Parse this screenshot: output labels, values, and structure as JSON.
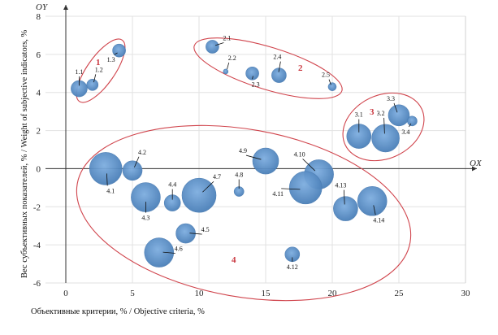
{
  "chart_data": {
    "type": "bubble",
    "xlabel": "Объективные критерии, % /  Objective criteria, %",
    "ylabel": "Вес субъективных показателей, % / Weight of subjective indicators, %",
    "x_axis_name": "OX",
    "y_axis_name": "OY",
    "xlim": [
      0,
      30
    ],
    "ylim": [
      -6,
      8
    ],
    "x_ticks": [
      "0",
      "5",
      "10",
      "15",
      "20",
      "25",
      "30"
    ],
    "y_ticks": [
      "8",
      "6",
      "4",
      "2",
      "0",
      "-2",
      "-4",
      "-6"
    ],
    "grid": true,
    "bubble_color": "#5b8fc7",
    "group_outline_color": "#d0444c",
    "groups": [
      {
        "label": "1",
        "points": [
          {
            "id": "1.1",
            "x": 1,
            "y": 4.2,
            "size": 10
          },
          {
            "id": "1.2",
            "x": 2,
            "y": 4.4,
            "size": 7
          },
          {
            "id": "1.3",
            "x": 4,
            "y": 6.2,
            "size": 8
          }
        ]
      },
      {
        "label": "2",
        "points": [
          {
            "id": "2.1",
            "x": 11,
            "y": 6.4,
            "size": 8
          },
          {
            "id": "2.2",
            "x": 12,
            "y": 5.1,
            "size": 3
          },
          {
            "id": "2.3",
            "x": 14,
            "y": 5.0,
            "size": 8
          },
          {
            "id": "2.4",
            "x": 16,
            "y": 4.9,
            "size": 9
          },
          {
            "id": "2.5",
            "x": 20,
            "y": 4.3,
            "size": 5
          }
        ]
      },
      {
        "label": "3",
        "points": [
          {
            "id": "3.1",
            "x": 22,
            "y": 1.7,
            "size": 15
          },
          {
            "id": "3.2",
            "x": 24,
            "y": 1.6,
            "size": 17
          },
          {
            "id": "3.3",
            "x": 25,
            "y": 2.8,
            "size": 13
          },
          {
            "id": "3.4",
            "x": 26,
            "y": 2.5,
            "size": 6
          }
        ]
      },
      {
        "label": "4",
        "points": [
          {
            "id": "4.1",
            "x": 3,
            "y": 0.0,
            "size": 20
          },
          {
            "id": "4.2",
            "x": 5,
            "y": -0.1,
            "size": 12
          },
          {
            "id": "4.3",
            "x": 6,
            "y": -1.5,
            "size": 18
          },
          {
            "id": "4.4",
            "x": 8,
            "y": -1.8,
            "size": 10
          },
          {
            "id": "4.5",
            "x": 9,
            "y": -3.4,
            "size": 12
          },
          {
            "id": "4.6",
            "x": 7,
            "y": -4.4,
            "size": 18
          },
          {
            "id": "4.7",
            "x": 10,
            "y": -1.4,
            "size": 21
          },
          {
            "id": "4.8",
            "x": 13,
            "y": -1.2,
            "size": 6
          },
          {
            "id": "4.9",
            "x": 15,
            "y": 0.4,
            "size": 16
          },
          {
            "id": "4.10",
            "x": 19,
            "y": -0.3,
            "size": 18
          },
          {
            "id": "4.11",
            "x": 18,
            "y": -1.0,
            "size": 20
          },
          {
            "id": "4.12",
            "x": 17,
            "y": -4.5,
            "size": 9
          },
          {
            "id": "4.13",
            "x": 21,
            "y": -2.1,
            "size": 15
          },
          {
            "id": "4.14",
            "x": 23,
            "y": -1.7,
            "size": 18
          }
        ]
      }
    ]
  }
}
